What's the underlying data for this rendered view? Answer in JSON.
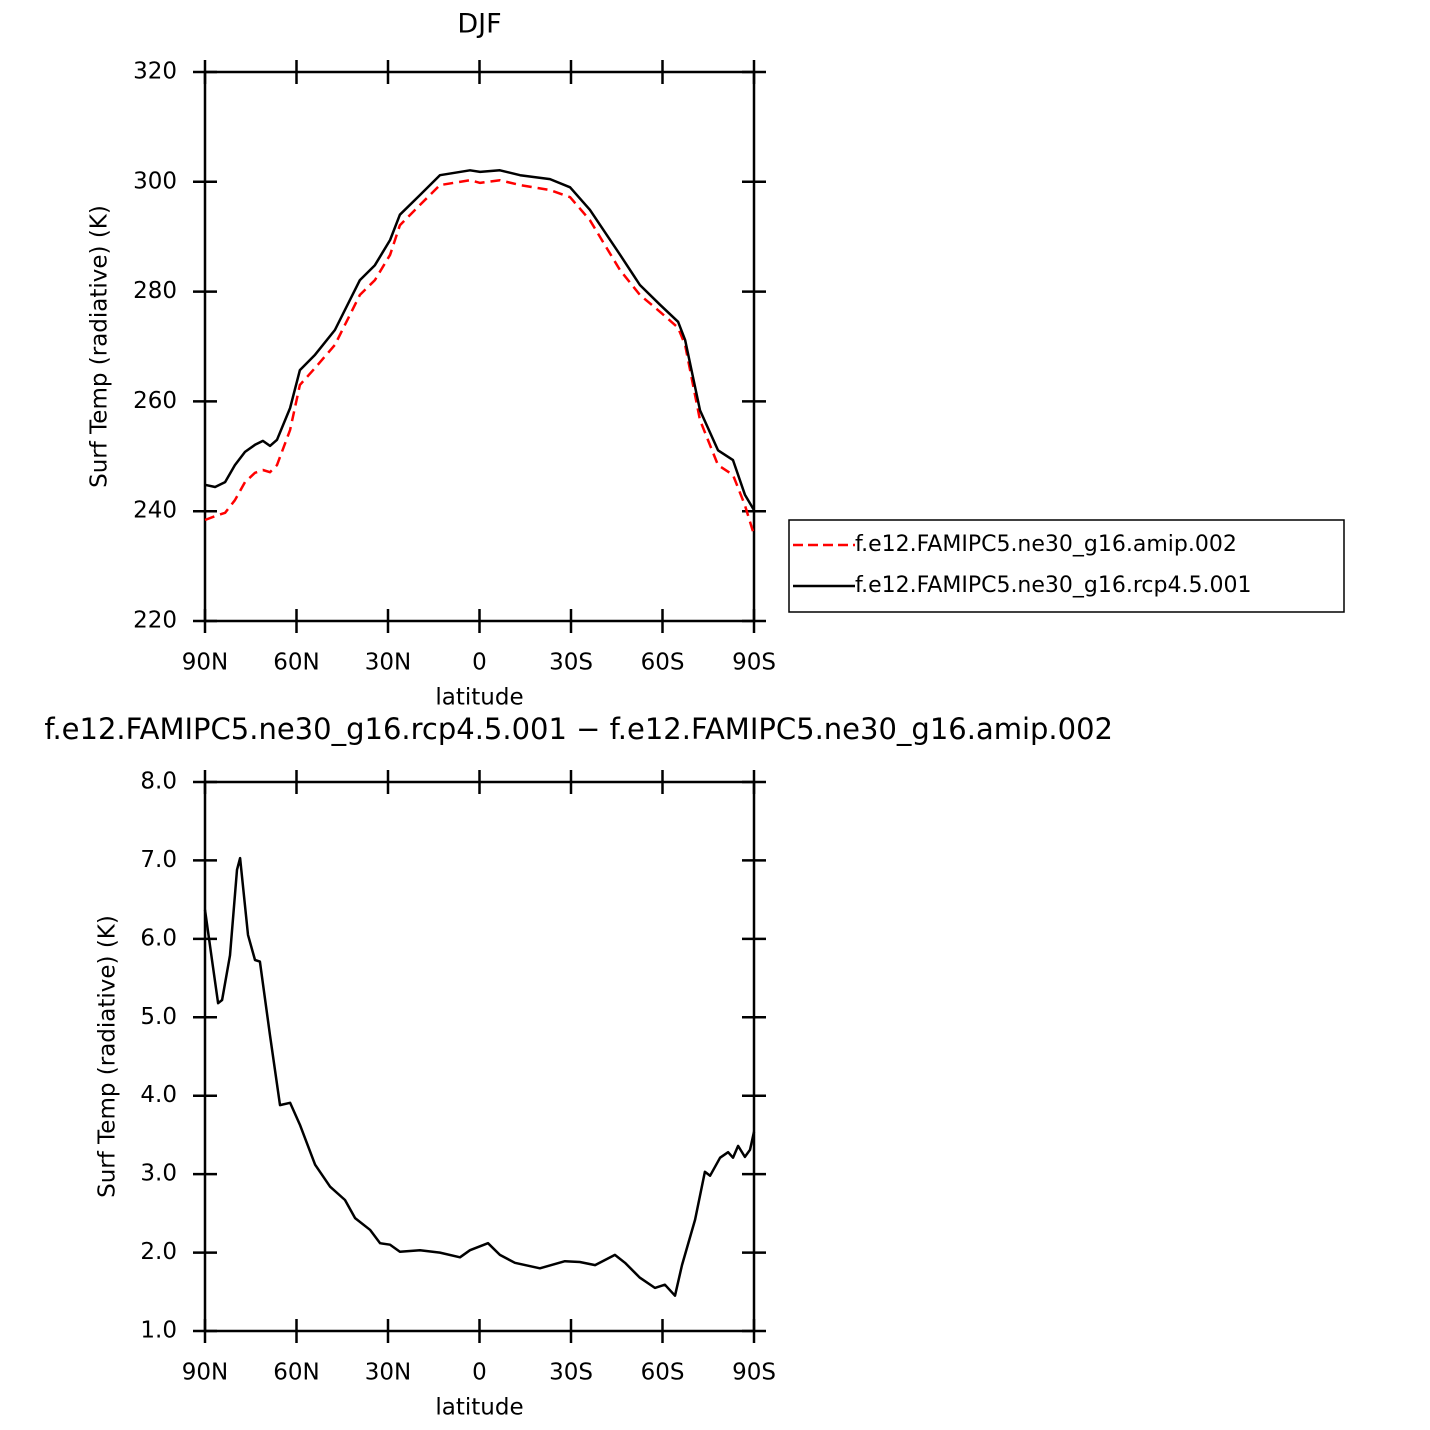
{
  "chart_data": [
    {
      "type": "line",
      "title": "DJF",
      "xlabel": "latitude",
      "ylabel": "Surf Temp (radiative) (K)",
      "xlim": [
        90,
        -90
      ],
      "xticks": [
        {
          "value": 90,
          "label": "90N"
        },
        {
          "value": 60,
          "label": "60N"
        },
        {
          "value": 30,
          "label": "30N"
        },
        0,
        {
          "value": -30,
          "label": "30S"
        },
        {
          "value": -60,
          "label": "60S"
        },
        {
          "value": -90,
          "label": "90S"
        }
      ],
      "ylim": [
        220,
        320
      ],
      "yticks": [
        220,
        240,
        260,
        280,
        300,
        320
      ],
      "x": [
        90,
        86.7,
        83.4,
        80.2,
        76.9,
        73.6,
        71,
        68.7,
        66.4,
        62.1,
        58.9,
        53.9,
        47.4,
        39.2,
        34.3,
        29.3,
        26.1,
        19.5,
        13,
        3.1,
        -0.2,
        -6.7,
        -13.3,
        -23.1,
        -29.7,
        -36.2,
        -46.1,
        -52.6,
        -59.2,
        -65.1,
        -67.4,
        -72.3,
        -78.2,
        -83.1,
        -87,
        -90
      ],
      "series": [
        {
          "name": "f.e12.FAMIPC5.ne30_g16.amip.002",
          "color": "#ff0000",
          "linestyle": "dashed",
          "values": [
            238.4,
            239.1,
            239.7,
            242,
            245.3,
            247,
            247.5,
            247.1,
            248.4,
            254.8,
            263,
            266.1,
            270.3,
            279.4,
            282.1,
            286.7,
            292.1,
            295.8,
            299.4,
            300.3,
            299.8,
            300.3,
            299.4,
            298.5,
            297.2,
            293,
            283.9,
            279.4,
            276.3,
            273.4,
            270.3,
            256.6,
            248.4,
            246.6,
            241.1,
            235.7
          ]
        },
        {
          "name": "f.e12.FAMIPC5.ne30_g16.rcp4.5.001",
          "color": "#000000",
          "linestyle": "solid",
          "values": [
            244.8,
            244.4,
            245.3,
            248.4,
            250.8,
            252.1,
            252.8,
            251.9,
            253,
            258.8,
            265.7,
            268.5,
            273,
            282.1,
            284.8,
            289.4,
            294,
            297.6,
            301.2,
            302.1,
            301.8,
            302.1,
            301.2,
            300.5,
            299,
            294.9,
            286.7,
            281.2,
            277.6,
            274.5,
            271.2,
            258.4,
            251.1,
            249.3,
            243,
            240.2
          ]
        }
      ]
    },
    {
      "type": "line",
      "title": "f.e12.FAMIPC5.ne30_g16.rcp4.5.001 − f.e12.FAMIPC5.ne30_g16.amip.002",
      "xlabel": "latitude",
      "ylabel": "Surf Temp (radiative) (K)",
      "xlim": [
        90,
        -90
      ],
      "xticks": [
        {
          "value": 90,
          "label": "90N"
        },
        {
          "value": 60,
          "label": "60N"
        },
        {
          "value": 30,
          "label": "30N"
        },
        0,
        {
          "value": -30,
          "label": "30S"
        },
        {
          "value": -60,
          "label": "60S"
        },
        {
          "value": -90,
          "label": "90S"
        }
      ],
      "ylim": [
        1,
        8
      ],
      "yticks": [
        {
          "value": 1,
          "label": "1.0"
        },
        {
          "value": 2,
          "label": "2.0"
        },
        {
          "value": 3,
          "label": "3.0"
        },
        {
          "value": 4,
          "label": "4.0"
        },
        {
          "value": 5,
          "label": "5.0"
        },
        {
          "value": 6,
          "label": "6.0"
        },
        {
          "value": 7,
          "label": "7.0"
        },
        {
          "value": 8,
          "label": "8.0"
        }
      ],
      "x": [
        90,
        87.7,
        85.7,
        84.4,
        81.8,
        79.5,
        78.5,
        75.9,
        73.6,
        72,
        68.7,
        65.4,
        62.1,
        58.9,
        53.9,
        49,
        44.1,
        40.8,
        35.9,
        32.6,
        29.3,
        26.1,
        19.5,
        13,
        6.4,
        3.1,
        -2.8,
        -6.7,
        -11.6,
        -19.8,
        -28,
        -32.9,
        -37.9,
        -44.4,
        -47.7,
        -52.6,
        -57.5,
        -60.8,
        -64.1,
        -66.4,
        -70.7,
        -73.9,
        -75.6,
        -78.9,
        -81.5,
        -83.1,
        -84.8,
        -87,
        -88.7,
        -90
      ],
      "color": "#000000",
      "values": [
        6.37,
        5.73,
        5.18,
        5.22,
        5.79,
        6.88,
        7.03,
        6.05,
        5.73,
        5.71,
        4.77,
        3.88,
        3.91,
        3.63,
        3.12,
        2.84,
        2.67,
        2.44,
        2.29,
        2.12,
        2.1,
        2.01,
        2.03,
        2.0,
        1.94,
        2.03,
        2.12,
        1.97,
        1.87,
        1.8,
        1.89,
        1.88,
        1.84,
        1.97,
        1.87,
        1.68,
        1.55,
        1.59,
        1.45,
        1.84,
        2.42,
        3.03,
        2.98,
        3.21,
        3.28,
        3.21,
        3.36,
        3.22,
        3.31,
        3.54
      ]
    }
  ]
}
